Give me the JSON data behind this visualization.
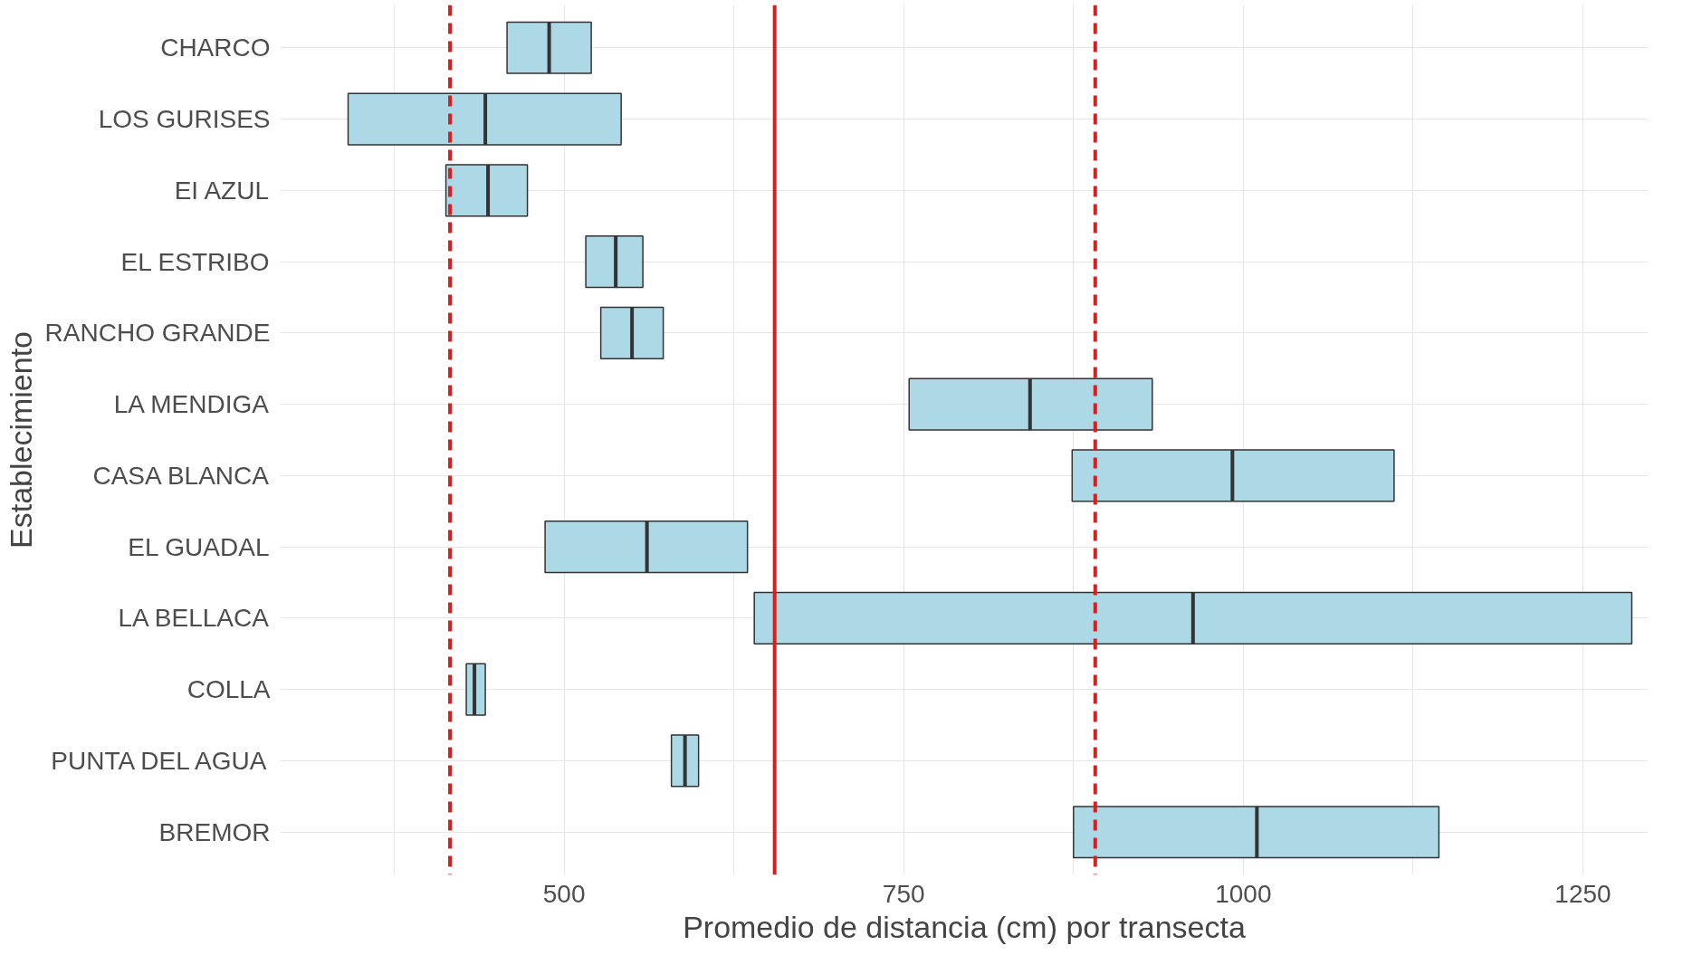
{
  "chart_data": {
    "type": "box",
    "orientation": "horizontal",
    "xlabel": "Promedio de distancia (cm) por transecta",
    "ylabel": "Establecimiento",
    "categories": [
      "CHARCO",
      "LOS GURISES",
      "EI AZUL",
      "EL ESTRIBO",
      "RANCHO GRANDE",
      "LA MENDIGA",
      "CASA BLANCA",
      "EL GUADAL",
      "LA BELLACA",
      "COLLA",
      "PUNTA DEL AGUA",
      "BREMOR"
    ],
    "boxes": [
      {
        "low": 458,
        "q1": 458,
        "median": 489,
        "q3": 520,
        "high": 520
      },
      {
        "low": 341,
        "q1": 341,
        "median": 442,
        "q3": 542,
        "high": 542
      },
      {
        "low": 413,
        "q1": 413,
        "median": 444,
        "q3": 473,
        "high": 473
      },
      {
        "low": 516,
        "q1": 516,
        "median": 538,
        "q3": 558,
        "high": 558
      },
      {
        "low": 527,
        "q1": 527,
        "median": 550,
        "q3": 573,
        "high": 573
      },
      {
        "low": 754,
        "q1": 754,
        "median": 843,
        "q3": 933,
        "high": 933
      },
      {
        "low": 874,
        "q1": 874,
        "median": 992,
        "q3": 1111,
        "high": 1111
      },
      {
        "low": 486,
        "q1": 486,
        "median": 561,
        "q3": 635,
        "high": 635
      },
      {
        "low": 640,
        "q1": 640,
        "median": 963,
        "q3": 1286,
        "high": 1286
      },
      {
        "low": 428,
        "q1": 428,
        "median": 434,
        "q3": 442,
        "high": 442
      },
      {
        "low": 579,
        "q1": 579,
        "median": 589,
        "q3": 599,
        "high": 599
      },
      {
        "low": 875,
        "q1": 875,
        "median": 1010,
        "q3": 1144,
        "high": 1144
      }
    ],
    "color": "#add8e6",
    "xlim": [
      291,
      1298
    ],
    "xticks": [
      {
        "value": 375,
        "label": null
      },
      500,
      {
        "value": 625,
        "label": null
      },
      750,
      {
        "value": 875,
        "label": null
      },
      1000,
      {
        "value": 1125,
        "label": null
      },
      1250
    ],
    "ref_lines": [
      {
        "axis": "x",
        "value": 416,
        "label": null,
        "color": "#dd1c1c",
        "line_style": "dashed"
      },
      {
        "axis": "x",
        "value": 655,
        "label": null,
        "color": "#dd1c1c",
        "line_style": "solid"
      },
      {
        "axis": "x",
        "value": 891,
        "label": null,
        "color": "#dd1c1c",
        "line_style": "dashed"
      }
    ],
    "grid": true
  }
}
